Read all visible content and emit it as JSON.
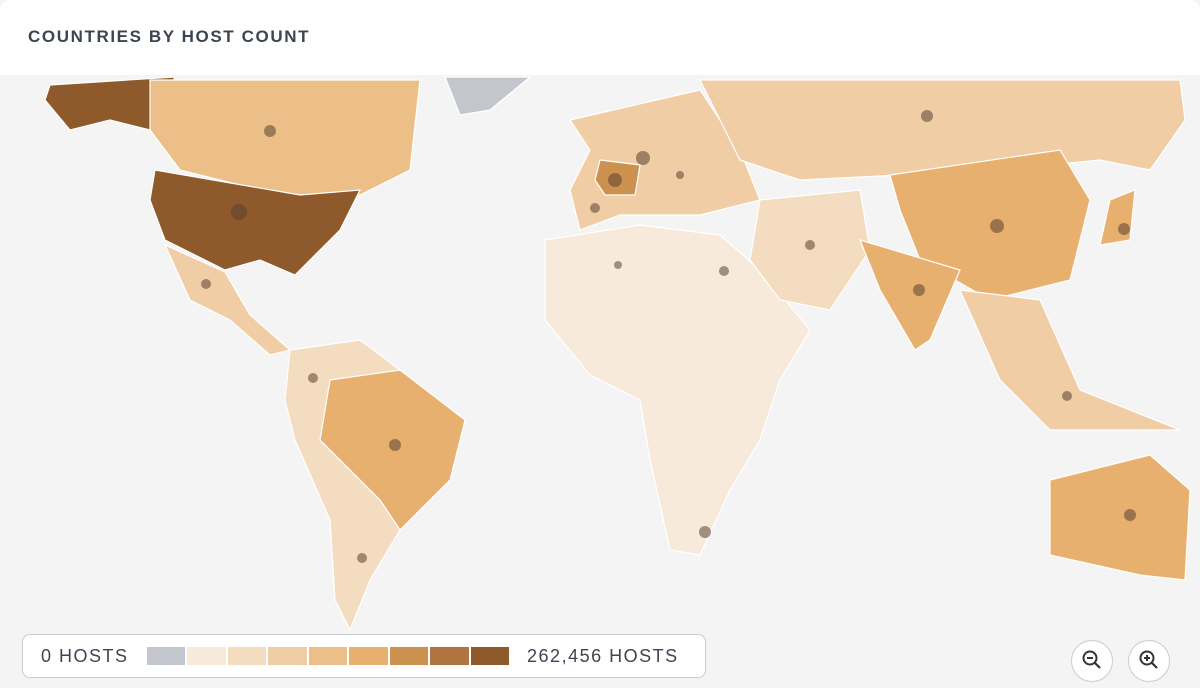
{
  "header": {
    "title": "COUNTRIES BY HOST COUNT"
  },
  "legend": {
    "min_label": "0 HOSTS",
    "max_label": "262,456 HOSTS",
    "colors": [
      "#c3c6cc",
      "#f8eadb",
      "#f4dcc0",
      "#f0cda4",
      "#ecbf89",
      "#e8b06f",
      "#cd914f",
      "#b17340",
      "#8e5a2c"
    ]
  }
}
